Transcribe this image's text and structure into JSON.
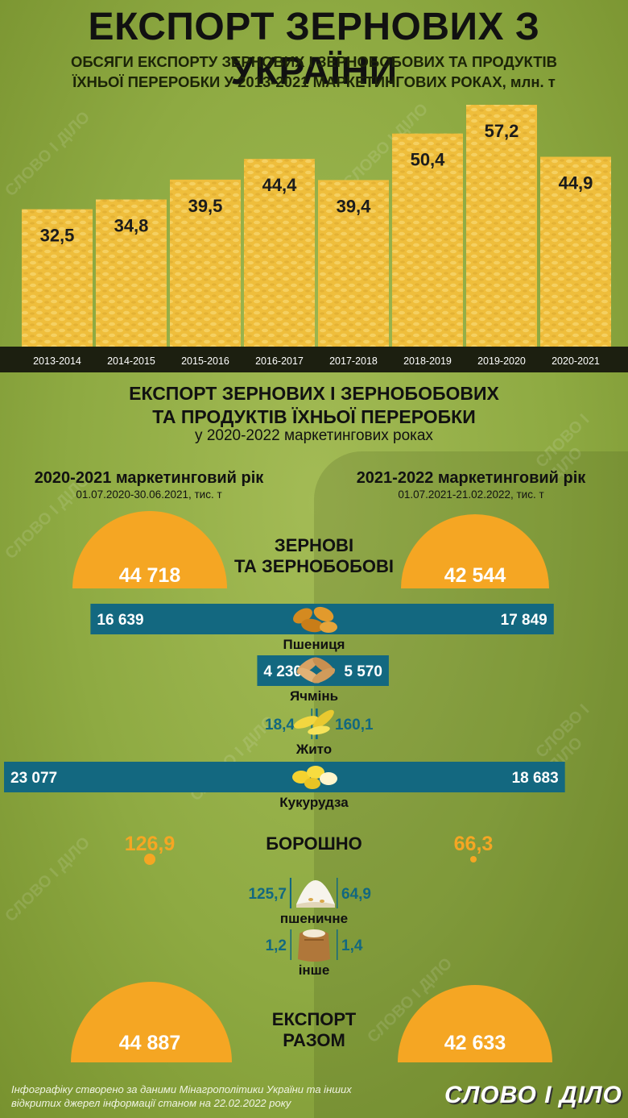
{
  "title": "ЕКСПОРТ ЗЕРНОВИХ З УКРАЇНИ",
  "subtitle_line1": "ОБСЯГИ ЕКСПОРТУ ЗЕРНОВИХ І ЗЕРНОБОБОВИХ ТА ПРОДУКТІВ",
  "subtitle_line2": "ЇХНЬОЇ ПЕРЕРОБКИ У 2013-2021 МАРКЕТИНГОВИХ РОКАХ, млн. т",
  "chart_data": [
    {
      "type": "bar",
      "categories": [
        "2013-2014",
        "2014-2015",
        "2015-2016",
        "2016-2017",
        "2017-2018",
        "2018-2019",
        "2019-2020",
        "2020-2021"
      ],
      "values": [
        32.5,
        34.8,
        39.5,
        44.4,
        39.4,
        50.4,
        57.2,
        44.9
      ],
      "value_labels": [
        "32,5",
        "34,8",
        "39,5",
        "44,4",
        "39,4",
        "50,4",
        "57,2",
        "44,9"
      ],
      "ylim": [
        0,
        57.2
      ],
      "colors": {
        "bar": "#efbe3c",
        "axis_band": "#1c1f10",
        "label": "#1c1c1c"
      }
    },
    {
      "type": "bar",
      "orientation": "horizontal-diverging",
      "categories": [
        "Пшениця",
        "Ячмінь",
        "Жито",
        "Кукурудза"
      ],
      "series": [
        {
          "name": "2020-2021 маркетинговий рік",
          "values": [
            16639,
            4230,
            18.4,
            23077
          ]
        },
        {
          "name": "2021-2022 маркетинговий рік",
          "values": [
            17849,
            5570,
            160.1,
            18683
          ]
        }
      ],
      "left_labels": [
        "16 639",
        "4 230",
        "18,4",
        "23 077"
      ],
      "right_labels": [
        "17 849",
        "5 570",
        "160,1",
        "18 683"
      ],
      "colors": {
        "bar": "#136880",
        "label_on_bar": "#ffffff",
        "label_off_bar": "#136880"
      }
    },
    {
      "type": "bar",
      "orientation": "horizontal-diverging",
      "categories": [
        "пшеничне",
        "інше"
      ],
      "series": [
        {
          "name": "2020-2021 маркетинговий рік",
          "values": [
            125.7,
            1.2
          ]
        },
        {
          "name": "2021-2022 маркетинговий рік",
          "values": [
            64.9,
            1.4
          ]
        }
      ],
      "left_labels": [
        "125,7",
        "1,2"
      ],
      "right_labels": [
        "64,9",
        "1,4"
      ]
    }
  ],
  "section2": {
    "title_line1": "ЕКСПОРТ ЗЕРНОВИХ І ЗЕРНОБОБОВИХ",
    "title_line2": "ТА ПРОДУКТІВ ЇХНЬОЇ ПЕРЕРОБКИ",
    "subtitle": "у 2020-2022 маркетингових роках",
    "left_head": "2020-2021 маркетинговий рік",
    "left_date": "01.07.2020-30.06.2021, тис. т",
    "right_head": "2021-2022 маркетинговий рік",
    "right_date": "01.07.2021-21.02.2022, тис. т",
    "grains_label_1": "ЗЕРНОВІ",
    "grains_label_2": "ТА ЗЕРНОБОБОВІ",
    "grains_left": "44 718",
    "grains_right": "42 544",
    "grains_values": [
      44718,
      42544
    ],
    "flour_label": "БОРОШНО",
    "flour_left": "126,9",
    "flour_right": "66,3",
    "total_label_1": "ЕКСПОРТ",
    "total_label_2": "РАЗОМ",
    "total_left": "44 887",
    "total_right": "42 633",
    "half_circle_color": "#f5a623",
    "flour_value_color": "#f5a623"
  },
  "footer": {
    "source_line1": "Інфографіку створено за даними Мінагрополітики України та інших",
    "source_line2": "відкритих джерел інформації станом на 22.02.2022 року",
    "logo": "СЛОВО І ДІЛО"
  },
  "watermark": "СЛОВО І ДІЛО",
  "icons": [
    "wheat-grains-icon",
    "barley-grains-icon",
    "rye-ears-icon",
    "corn-kernels-icon",
    "flour-pile-icon",
    "flour-sack-icon"
  ]
}
